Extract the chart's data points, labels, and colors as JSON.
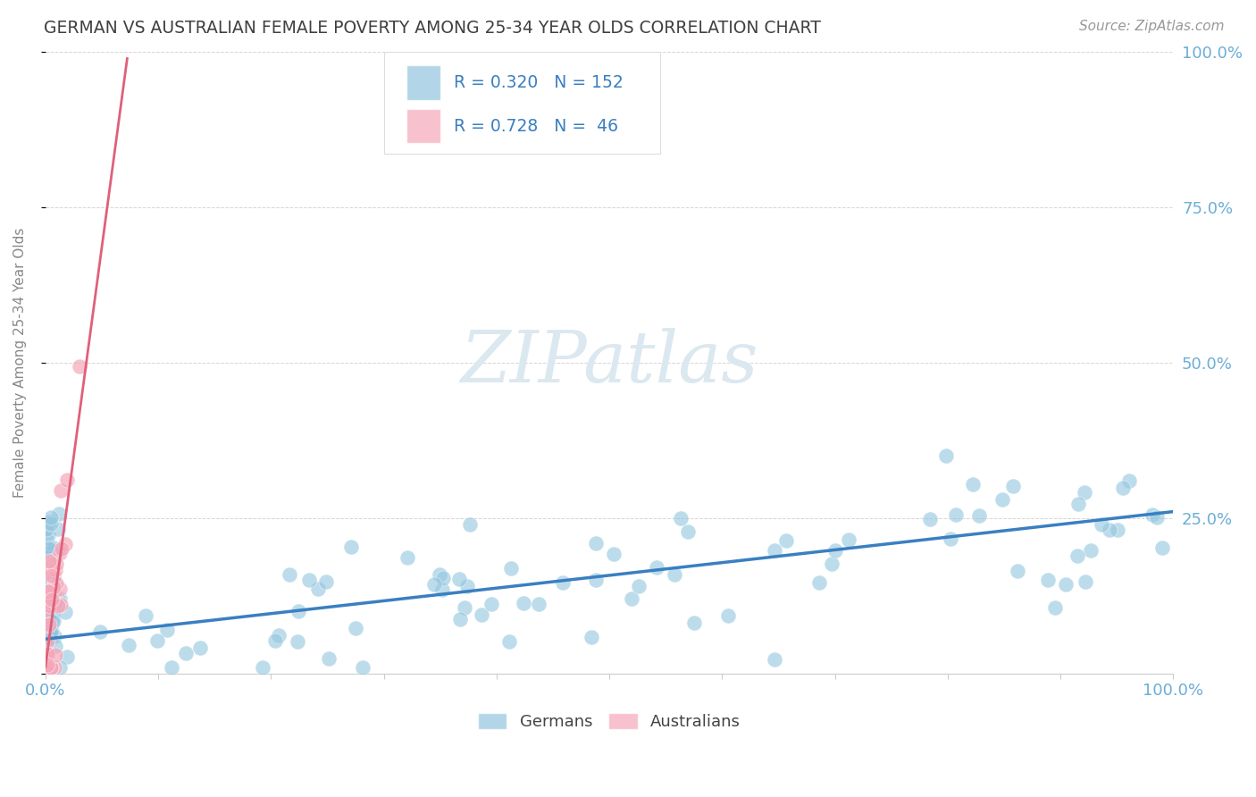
{
  "title": "GERMAN VS AUSTRALIAN FEMALE POVERTY AMONG 25-34 YEAR OLDS CORRELATION CHART",
  "source": "Source: ZipAtlas.com",
  "ylabel": "Female Poverty Among 25-34 Year Olds",
  "r_german": 0.32,
  "n_german": 152,
  "r_australian": 0.728,
  "n_australian": 46,
  "german_color": "#92c5de",
  "german_edge_color": "#6baed6",
  "australian_color": "#f4a7b9",
  "australian_edge_color": "#e07090",
  "german_line_color": "#3a7fc1",
  "australian_line_color": "#e0607a",
  "watermark_text": "ZIPatlas",
  "watermark_color": "#dce8f0",
  "background_color": "#ffffff",
  "grid_color": "#cccccc",
  "title_color": "#404040",
  "tick_label_color": "#6baed6",
  "right_axis_color": "#6baed6",
  "legend_text_color": "#3a7fc1",
  "legend_border_color": "#dddddd",
  "axis_label_color": "#888888",
  "german_line_intercept": 0.055,
  "german_line_slope": 0.205,
  "australian_line_intercept": 0.01,
  "australian_line_slope": 13.5
}
